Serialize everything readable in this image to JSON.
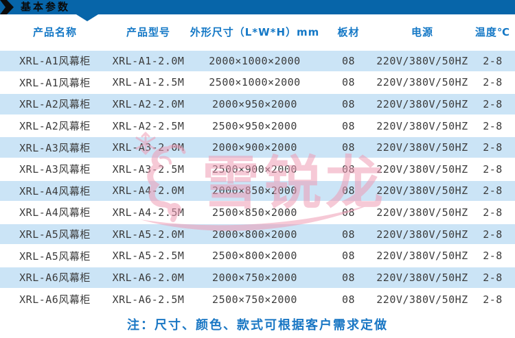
{
  "header": {
    "title": "基本参数"
  },
  "table": {
    "columns": [
      "产品名称",
      "产品型号",
      "外形尺寸（L*W*H）mm",
      "板材",
      "电源",
      "温度℃"
    ],
    "rows": [
      [
        "XRL-A1风幕柜",
        "XRL-A1-2.0M",
        "2000×1000×2000",
        "08",
        "220V/380V/50HZ",
        "2-8"
      ],
      [
        "XRL-A1风幕柜",
        "XRL-A1-2.5M",
        "2500×1000×2000",
        "08",
        "220V/380V/50HZ",
        "2-8"
      ],
      [
        "XRL-A2风幕柜",
        "XRL-A2-2.0M",
        "2000×950×2000",
        "08",
        "220V/380V/50HZ",
        "2-8"
      ],
      [
        "XRL-A2风幕柜",
        "XRL-A2-2.5M",
        "2500×950×2000",
        "08",
        "220V/380V/50HZ",
        "2-8"
      ],
      [
        "XRL-A3风幕柜",
        "XRL-A3-2.0M",
        "2000×900×2000",
        "08",
        "220V/380V/50HZ",
        "2-8"
      ],
      [
        "XRL-A3风幕柜",
        "XRL-A3-2.5M",
        "2500×900×2000",
        "08",
        "220V/380V/50HZ",
        "2-8"
      ],
      [
        "XRL-A4风幕柜",
        "XRL-A4-2.0M",
        "2000×850×2000",
        "08",
        "220V/380V/50HZ",
        "2-8"
      ],
      [
        "XRL-A4风幕柜",
        "XRL-A4-2.5M",
        "2500×850×2000",
        "08",
        "220V/380V/50HZ",
        "2-8"
      ],
      [
        "XRL-A5风幕柜",
        "XRL-A5-2.0M",
        "2000×800×2000",
        "08",
        "220V/380V/50HZ",
        "2-8"
      ],
      [
        "XRL-A5风幕柜",
        "XRL-A5-2.5M",
        "2500×800×2000",
        "08",
        "220V/380V/50HZ",
        "2-8"
      ],
      [
        "XRL-A6风幕柜",
        "XRL-A6-2.0M",
        "2000×750×2000",
        "08",
        "220V/380V/50HZ",
        "2-8"
      ],
      [
        "XRL-A6风幕柜",
        "XRL-A6-2.5M",
        "2500×750×2000",
        "08",
        "220V/380V/50HZ",
        "2-8"
      ]
    ]
  },
  "note": {
    "text": "注：尺寸、颜色、款式可根据客户需求定做"
  },
  "watermark": {
    "brand_text": "雪锐龙",
    "icon": "snowflake-dragon-watermark"
  },
  "colors": {
    "bar_blue": "#0765a9",
    "header_text_blue": "#1478c6",
    "row_stripe_blue": "#cbe4f6",
    "note_blue": "#1a77c4",
    "watermark_pink": "#ef9db5",
    "body_text": "#3b3b3b"
  }
}
